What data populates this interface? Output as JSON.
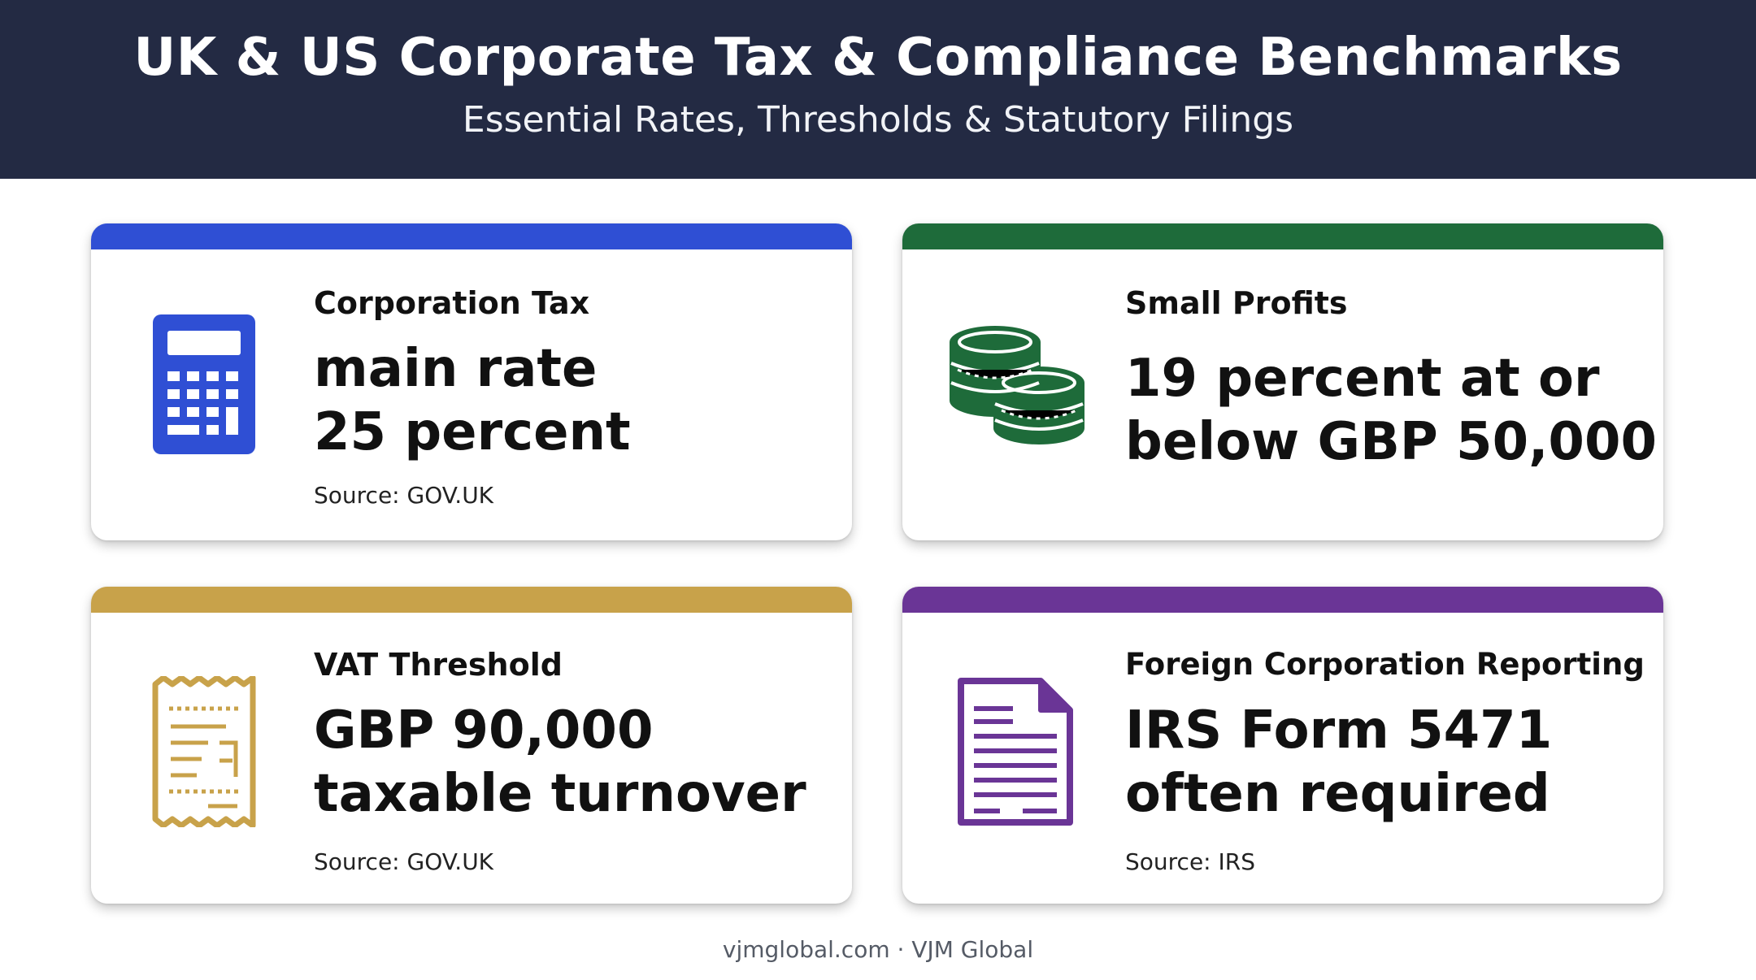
{
  "header": {
    "title": "UK & US Corporate Tax & Compliance Benchmarks",
    "subtitle": "Essential Rates, Thresholds & Statutory Filings"
  },
  "cards": [
    {
      "label": "Corporation Tax",
      "value_lines": [
        "main rate",
        "25 percent"
      ],
      "source": "Source: GOV.UK",
      "accent": "#2f4fd4",
      "icon": "calculator-icon"
    },
    {
      "label": "Small Profits",
      "value_lines": [
        "19 percent at or",
        "below GBP 50,000"
      ],
      "accent": "#1e6b3a",
      "icon": "coins-icon"
    },
    {
      "label": "VAT Threshold",
      "value_lines": [
        "GBP 90,000",
        "taxable turnover"
      ],
      "source": "Source: GOV.UK",
      "accent": "#c8a24a",
      "icon": "receipt-icon"
    },
    {
      "label": "Foreign Corporation Reporting",
      "value_lines": [
        "IRS Form 5471",
        "often required"
      ],
      "source": "Source: IRS",
      "accent": "#6a3596",
      "icon": "document-icon"
    }
  ],
  "footer": {
    "text": "vjmglobal.com · VJM Global"
  }
}
